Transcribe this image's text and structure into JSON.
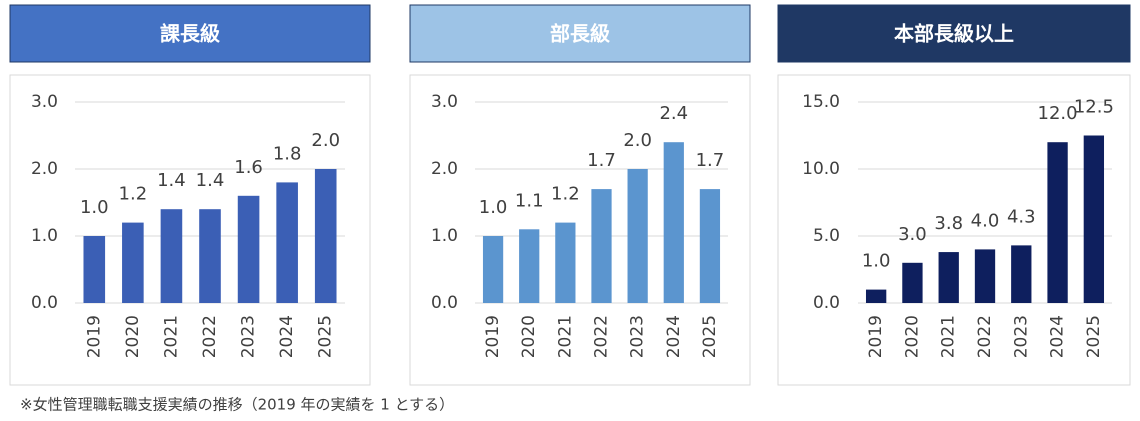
{
  "chart_data": [
    {
      "type": "bar",
      "title": "課長級",
      "header_color": "#4472c4",
      "color": "#3b5fb5",
      "categories": [
        "2019",
        "2020",
        "2021",
        "2022",
        "2023",
        "2024",
        "2025"
      ],
      "values": [
        1.0,
        1.2,
        1.4,
        1.4,
        1.6,
        1.8,
        2.0
      ],
      "value_labels": [
        "1.0",
        "1.2",
        "1.4",
        "1.4",
        "1.6",
        "1.8",
        "2.0"
      ],
      "ylim": [
        0,
        3
      ],
      "yticks": [
        {
          "value": 0,
          "label": "0.0"
        },
        {
          "value": 1,
          "label": "1.0"
        },
        {
          "value": 2,
          "label": "2.0"
        },
        {
          "value": 3,
          "label": "3.0"
        }
      ],
      "grid": true
    },
    {
      "type": "bar",
      "title": "部長級",
      "header_color": "#9dc3e6",
      "color": "#5b95cf",
      "categories": [
        "2019",
        "2020",
        "2021",
        "2022",
        "2023",
        "2024",
        "2025"
      ],
      "values": [
        1.0,
        1.1,
        1.2,
        1.7,
        2.0,
        2.4,
        1.7
      ],
      "value_labels": [
        "1.0",
        "1.1",
        "1.2",
        "1.7",
        "2.0",
        "2.4",
        "1.7"
      ],
      "ylim": [
        0,
        3
      ],
      "yticks": [
        {
          "value": 0,
          "label": "0.0"
        },
        {
          "value": 1,
          "label": "1.0"
        },
        {
          "value": 2,
          "label": "2.0"
        },
        {
          "value": 3,
          "label": "3.0"
        }
      ],
      "grid": true
    },
    {
      "type": "bar",
      "title": "本部長級以上",
      "header_color": "#1f3864",
      "color": "#0e1f5e",
      "categories": [
        "2019",
        "2020",
        "2021",
        "2022",
        "2023",
        "2024",
        "2025"
      ],
      "values": [
        1.0,
        3.0,
        3.8,
        4.0,
        4.3,
        12.0,
        12.5
      ],
      "value_labels": [
        "1.0",
        "3.0",
        "3.8",
        "4.0",
        "4.3",
        "12.0",
        "12.5"
      ],
      "ylim": [
        0,
        15
      ],
      "yticks": [
        {
          "value": 0,
          "label": "0.0"
        },
        {
          "value": 5,
          "label": "5.0"
        },
        {
          "value": 10,
          "label": "10.0"
        },
        {
          "value": 15,
          "label": "15.0"
        }
      ],
      "grid": true
    }
  ],
  "footnote": "※女性管理職転職支援実績の推移（2019 年の実績を 1 とする）"
}
